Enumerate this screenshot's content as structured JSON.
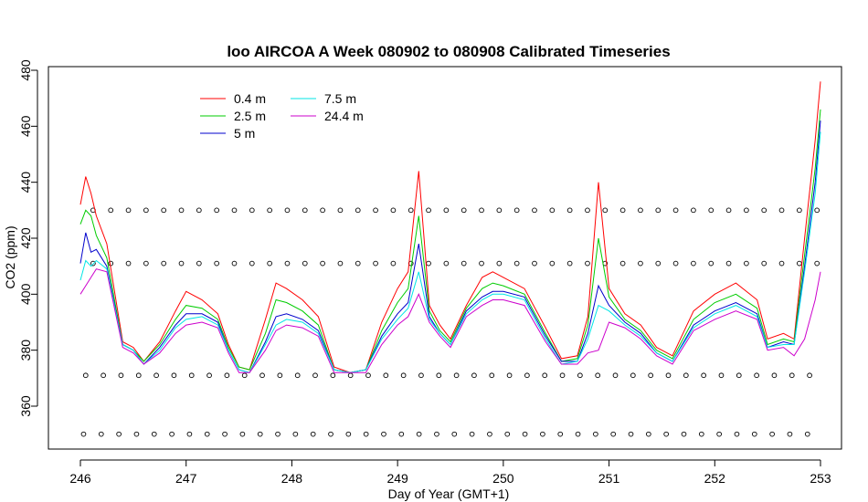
{
  "chart_data": {
    "type": "line",
    "title": "loo AIRCOA A  Week 080902 to 080908  Calibrated Timeseries",
    "xlabel": "Day of Year (GMT+1)",
    "ylabel": "CO2 (ppm)",
    "xlim": [
      246,
      253
    ],
    "ylim": [
      348,
      481
    ],
    "x_ticks": [
      246,
      247,
      248,
      249,
      250,
      251,
      252,
      253
    ],
    "x_tick_labels": [
      "246",
      "247",
      "248",
      "249",
      "250",
      "251",
      "252",
      "253"
    ],
    "y_ticks": [
      360,
      380,
      400,
      420,
      440,
      460,
      480
    ],
    "y_tick_labels": [
      "360",
      "380",
      "400",
      "420",
      "440",
      "460",
      "480"
    ],
    "grid": false,
    "legend_position": "top-left",
    "series": [
      {
        "name": "0.4 m",
        "color": "#ff0000",
        "x": [
          246.0,
          246.05,
          246.1,
          246.15,
          246.25,
          246.4,
          246.5,
          246.6,
          246.75,
          246.9,
          247.0,
          247.15,
          247.3,
          247.4,
          247.5,
          247.6,
          247.75,
          247.85,
          247.95,
          248.1,
          248.25,
          248.4,
          248.55,
          248.7,
          248.85,
          249.0,
          249.1,
          249.2,
          249.3,
          249.4,
          249.5,
          249.65,
          249.8,
          249.9,
          250.0,
          250.2,
          250.4,
          250.55,
          250.7,
          250.8,
          250.9,
          251.0,
          251.15,
          251.3,
          251.45,
          251.6,
          251.8,
          252.0,
          252.2,
          252.4,
          252.5,
          252.65,
          252.75,
          252.85,
          252.95,
          253.0
        ],
        "y": [
          432,
          442,
          436,
          428,
          418,
          383,
          381,
          376,
          383,
          394,
          401,
          398,
          393,
          382,
          374,
          373,
          391,
          404,
          402,
          398,
          392,
          374,
          372,
          373,
          390,
          402,
          408,
          444,
          396,
          389,
          384,
          396,
          406,
          408,
          406,
          402,
          388,
          377,
          378,
          392,
          440,
          402,
          393,
          389,
          381,
          378,
          394,
          400,
          404,
          398,
          384,
          386,
          384,
          420,
          455,
          476
        ]
      },
      {
        "name": "2.5 m",
        "color": "#00cc00",
        "x": [
          246.0,
          246.05,
          246.1,
          246.15,
          246.25,
          246.4,
          246.5,
          246.6,
          246.75,
          246.9,
          247.0,
          247.15,
          247.3,
          247.4,
          247.5,
          247.6,
          247.75,
          247.85,
          247.95,
          248.1,
          248.25,
          248.4,
          248.55,
          248.7,
          248.85,
          249.0,
          249.1,
          249.2,
          249.3,
          249.4,
          249.5,
          249.65,
          249.8,
          249.9,
          250.0,
          250.2,
          250.4,
          250.55,
          250.7,
          250.8,
          250.9,
          251.0,
          251.15,
          251.3,
          251.45,
          251.6,
          251.8,
          252.0,
          252.2,
          252.4,
          252.5,
          252.65,
          252.75,
          252.85,
          252.95,
          253.0
        ],
        "y": [
          425,
          430,
          428,
          421,
          413,
          382,
          380,
          376,
          382,
          391,
          396,
          395,
          391,
          381,
          374,
          373,
          386,
          398,
          397,
          394,
          389,
          373,
          372,
          373,
          387,
          397,
          402,
          428,
          394,
          387,
          383,
          395,
          402,
          404,
          403,
          400,
          386,
          376,
          377,
          389,
          420,
          399,
          391,
          387,
          380,
          377,
          391,
          397,
          400,
          395,
          382,
          384,
          383,
          414,
          445,
          466
        ]
      },
      {
        "name": "5 m",
        "color": "#0000cc",
        "x": [
          246.0,
          246.05,
          246.1,
          246.15,
          246.25,
          246.4,
          246.5,
          246.6,
          246.75,
          246.9,
          247.0,
          247.15,
          247.3,
          247.4,
          247.5,
          247.6,
          247.75,
          247.85,
          247.95,
          248.1,
          248.25,
          248.4,
          248.55,
          248.7,
          248.85,
          249.0,
          249.1,
          249.2,
          249.3,
          249.4,
          249.5,
          249.65,
          249.8,
          249.9,
          250.0,
          250.2,
          250.4,
          250.55,
          250.7,
          250.8,
          250.9,
          251.0,
          251.15,
          251.3,
          251.45,
          251.6,
          251.8,
          252.0,
          252.2,
          252.4,
          252.5,
          252.65,
          252.75,
          252.85,
          252.95,
          253.0
        ],
        "y": [
          411,
          422,
          415,
          416,
          410,
          382,
          380,
          375,
          381,
          389,
          393,
          393,
          390,
          380,
          373,
          372,
          383,
          392,
          393,
          391,
          387,
          373,
          372,
          373,
          385,
          393,
          397,
          418,
          392,
          386,
          382,
          394,
          399,
          401,
          401,
          399,
          385,
          376,
          376,
          386,
          403,
          396,
          390,
          386,
          379,
          376,
          389,
          394,
          397,
          393,
          381,
          383,
          382,
          410,
          440,
          462
        ]
      },
      {
        "name": "7.5 m",
        "color": "#00e5e5",
        "x": [
          246.0,
          246.05,
          246.1,
          246.15,
          246.25,
          246.4,
          246.5,
          246.6,
          246.75,
          246.9,
          247.0,
          247.15,
          247.3,
          247.4,
          247.5,
          247.6,
          247.75,
          247.85,
          247.95,
          248.1,
          248.25,
          248.4,
          248.55,
          248.7,
          248.85,
          249.0,
          249.1,
          249.2,
          249.3,
          249.4,
          249.5,
          249.65,
          249.8,
          249.9,
          250.0,
          250.2,
          250.4,
          250.55,
          250.7,
          250.8,
          250.9,
          251.0,
          251.15,
          251.3,
          251.45,
          251.6,
          251.8,
          252.0,
          252.2,
          252.4,
          252.5,
          252.65,
          252.75,
          252.85,
          252.95,
          253.0
        ],
        "y": [
          405,
          412,
          410,
          412,
          409,
          382,
          380,
          375,
          380,
          388,
          391,
          392,
          389,
          380,
          373,
          372,
          382,
          389,
          391,
          390,
          386,
          373,
          372,
          373,
          384,
          391,
          395,
          408,
          391,
          386,
          382,
          393,
          398,
          400,
          400,
          398,
          384,
          375,
          376,
          384,
          396,
          394,
          389,
          385,
          379,
          376,
          388,
          393,
          396,
          392,
          381,
          382,
          382,
          408,
          436,
          458
        ]
      },
      {
        "name": "24.4 m",
        "color": "#cc00cc",
        "x": [
          246.0,
          246.05,
          246.1,
          246.15,
          246.25,
          246.4,
          246.5,
          246.6,
          246.75,
          246.9,
          247.0,
          247.15,
          247.3,
          247.4,
          247.5,
          247.6,
          247.75,
          247.85,
          247.95,
          248.1,
          248.25,
          248.4,
          248.55,
          248.7,
          248.85,
          249.0,
          249.1,
          249.2,
          249.3,
          249.4,
          249.5,
          249.65,
          249.8,
          249.9,
          250.0,
          250.2,
          250.4,
          250.55,
          250.7,
          250.8,
          250.9,
          251.0,
          251.15,
          251.3,
          251.45,
          251.6,
          251.8,
          252.0,
          252.2,
          252.4,
          252.5,
          252.65,
          252.75,
          252.85,
          252.95,
          253.0
        ],
        "y": [
          400,
          403,
          406,
          409,
          408,
          381,
          379,
          375,
          379,
          386,
          389,
          390,
          388,
          379,
          372,
          372,
          380,
          387,
          389,
          388,
          385,
          372,
          372,
          372,
          382,
          389,
          392,
          400,
          390,
          385,
          381,
          392,
          396,
          398,
          398,
          396,
          383,
          375,
          375,
          379,
          380,
          390,
          388,
          384,
          378,
          375,
          387,
          391,
          394,
          391,
          380,
          381,
          378,
          384,
          398,
          408
        ]
      }
    ],
    "marker_rows": [
      {
        "y": 430,
        "x_start": 246.12,
        "x_end": 253.0,
        "step": 0.167
      },
      {
        "y": 411,
        "x_start": 246.12,
        "x_end": 253.0,
        "step": 0.167
      },
      {
        "y": 371,
        "x_start": 246.05,
        "x_end": 253.0,
        "step": 0.167
      },
      {
        "y": 350,
        "x_start": 246.03,
        "x_end": 253.0,
        "step": 0.167
      }
    ]
  }
}
